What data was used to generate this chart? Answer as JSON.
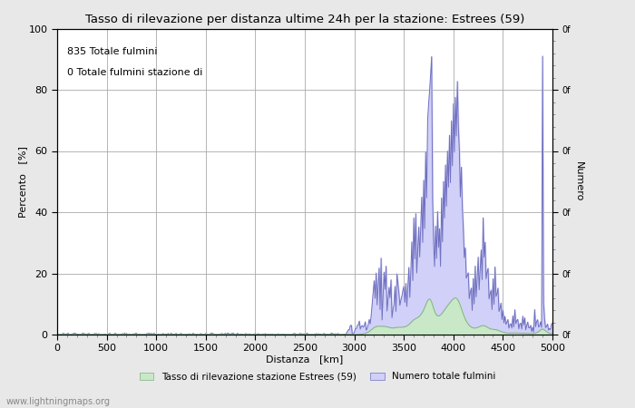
{
  "title": "Tasso di rilevazione per distanza ultime 24h per la stazione: Estrees (59)",
  "xlabel": "Distanza   [km]",
  "ylabel_left": "Percento   [%]",
  "ylabel_right": "Numero",
  "annotation_line1": "835 Totale fulmini",
  "annotation_line2": "0 Totale fulmini stazione di",
  "legend_label1": "Tasso di rilevazione stazione Estrees (59)",
  "legend_label2": "Numero totale fulmini",
  "watermark": "www.lightningmaps.org",
  "xlim": [
    0,
    5000
  ],
  "ylim_left": [
    0,
    100
  ],
  "ylim_right": [
    0,
    100
  ],
  "x_ticks": [
    0,
    500,
    1000,
    1500,
    2000,
    2500,
    3000,
    3500,
    4000,
    4500,
    5000
  ],
  "y_ticks_left": [
    0,
    20,
    40,
    60,
    80,
    100
  ],
  "bg_color": "#e8e8e8",
  "plot_bg_color": "#ffffff",
  "grid_color": "#aaaaaa",
  "fill_blue_color": "#d0d0f8",
  "fill_green_color": "#c8e8c8",
  "line_color_blue": "#7070c0",
  "line_color_green": "#80b080"
}
